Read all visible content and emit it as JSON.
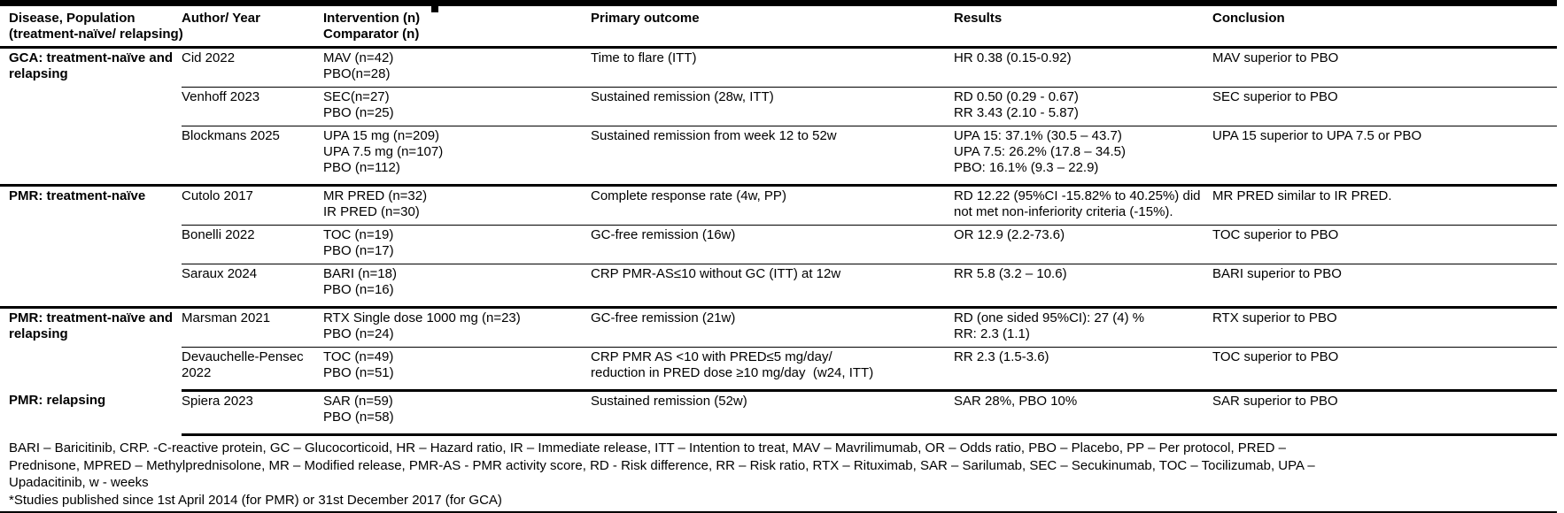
{
  "page": {
    "background": "#ffffff",
    "text_color": "#000000",
    "rule_color": "#000000"
  },
  "table": {
    "headers": [
      {
        "lines": [
          "Disease, Population",
          "(treatment-naïve/ relapsing)"
        ]
      },
      {
        "lines": [
          "Author/ Year"
        ]
      },
      {
        "lines": [
          "Intervention (n)",
          "Comparator (n)"
        ]
      },
      {
        "lines": [
          "Primary outcome"
        ]
      },
      {
        "lines": [
          "Results"
        ]
      },
      {
        "lines": [
          "Conclusion"
        ]
      }
    ],
    "sections": [
      {
        "disease_lines": [
          "GCA: treatment-naïve and",
          "relapsing"
        ],
        "studies": [
          {
            "author_lines": [
              "Cid 2022"
            ],
            "intervention_lines": [
              "MAV (n=42)",
              "PBO(n=28)"
            ],
            "outcome_lines": [
              "Time to flare (ITT)"
            ],
            "results_lines": [
              "HR 0.38 (0.15-0.92)"
            ],
            "conclusion_lines": [
              "MAV superior to PBO"
            ]
          },
          {
            "author_lines": [
              "Venhoff 2023"
            ],
            "intervention_lines": [
              "SEC(n=27)",
              "PBO (n=25)"
            ],
            "outcome_lines": [
              "Sustained remission (28w, ITT)"
            ],
            "results_lines": [
              "RD 0.50 (0.29 - 0.67)",
              "RR 3.43 (2.10 - 5.87)"
            ],
            "conclusion_lines": [
              "SEC superior to PBO"
            ]
          },
          {
            "author_lines": [
              "Blockmans 2025"
            ],
            "intervention_lines": [
              "UPA 15 mg (n=209)",
              "UPA 7.5 mg (n=107)",
              "PBO (n=112)"
            ],
            "outcome_lines": [
              "Sustained remission from week 12 to 52w"
            ],
            "results_lines": [
              "UPA 15: 37.1% (30.5 – 43.7)",
              "UPA 7.5: 26.2% (17.8 – 34.5)",
              "PBO: 16.1% (9.3 – 22.9)"
            ],
            "conclusion_lines": [
              "UPA 15 superior to UPA 7.5 or PBO"
            ]
          }
        ]
      },
      {
        "disease_lines": [
          "PMR: treatment-naïve"
        ],
        "studies": [
          {
            "author_lines": [
              "Cutolo 2017"
            ],
            "intervention_lines": [
              "MR PRED (n=32)",
              "IR PRED (n=30)"
            ],
            "outcome_lines": [
              "Complete response rate (4w, PP)"
            ],
            "results_lines": [
              "RD 12.22 (95%CI -15.82% to 40.25%) did",
              "not met non-inferiority criteria (-15%)."
            ],
            "conclusion_lines": [
              "MR PRED similar to IR PRED."
            ]
          },
          {
            "author_lines": [
              "Bonelli 2022"
            ],
            "intervention_lines": [
              "TOC (n=19)",
              "PBO (n=17)"
            ],
            "outcome_lines": [
              "GC-free remission (16w)"
            ],
            "results_lines": [
              "OR 12.9 (2.2-73.6)"
            ],
            "conclusion_lines": [
              "TOC superior to PBO"
            ]
          },
          {
            "author_lines": [
              "Saraux 2024"
            ],
            "intervention_lines": [
              "BARI (n=18)",
              "PBO (n=16)"
            ],
            "outcome_lines": [
              "CRP PMR-AS≤10 without GC (ITT) at 12w"
            ],
            "results_lines": [
              "RR 5.8 (3.2 – 10.6)"
            ],
            "conclusion_lines": [
              "BARI superior to PBO"
            ]
          }
        ]
      },
      {
        "disease_lines": [
          "PMR: treatment-naïve and",
          "relapsing"
        ],
        "studies": [
          {
            "author_lines": [
              "Marsman 2021"
            ],
            "intervention_lines": [
              "RTX Single dose 1000 mg (n=23)",
              "PBO (n=24)"
            ],
            "outcome_lines": [
              "GC-free remission (21w)"
            ],
            "results_lines": [
              "RD (one sided 95%CI): 27 (4) %",
              "RR: 2.3 (1.1)"
            ],
            "conclusion_lines": [
              "RTX superior to PBO"
            ]
          },
          {
            "author_lines": [
              "Devauchelle-Pensec",
              "2022"
            ],
            "intervention_lines": [
              "TOC (n=49)",
              "PBO (n=51)"
            ],
            "outcome_lines": [
              "CRP PMR AS <10 with PRED≤5 mg/day/",
              "reduction in PRED dose ≥10 mg/day  (w24, ITT)"
            ],
            "results_lines": [
              "RR 2.3 (1.5-3.6)"
            ],
            "conclusion_lines": [
              "TOC superior to PBO"
            ]
          }
        ]
      },
      {
        "disease_lines": [
          "PMR: relapsing"
        ],
        "studies": [
          {
            "author_lines": [
              "Spiera 2023"
            ],
            "intervention_lines": [
              "SAR (n=59)",
              "PBO (n=58)"
            ],
            "outcome_lines": [
              "Sustained remission (52w)"
            ],
            "results_lines": [
              "SAR 28%, PBO 10%"
            ],
            "conclusion_lines": [
              "SAR superior to PBO"
            ]
          }
        ]
      }
    ],
    "footnote_lines": [
      "BARI – Baricitinib, CRP. -C-reactive protein, GC – Glucocorticoid, HR – Hazard ratio, IR – Immediate release, ITT – Intention to treat, MAV – Mavrilimumab, OR – Odds ratio, PBO – Placebo, PP – Per protocol, PRED –",
      "Prednisone, MPRED – Methylprednisolone, MR – Modified release, PMR-AS - PMR activity score, RD - Risk difference, RR – Risk ratio, RTX – Rituximab, SAR – Sarilumab, SEC – Secukinumab, TOC – Tocilizumab, UPA –",
      "Upadacitinib, w - weeks",
      "*Studies published since 1st April 2014 (for PMR) or 31st December 2017 (for GCA)"
    ]
  }
}
